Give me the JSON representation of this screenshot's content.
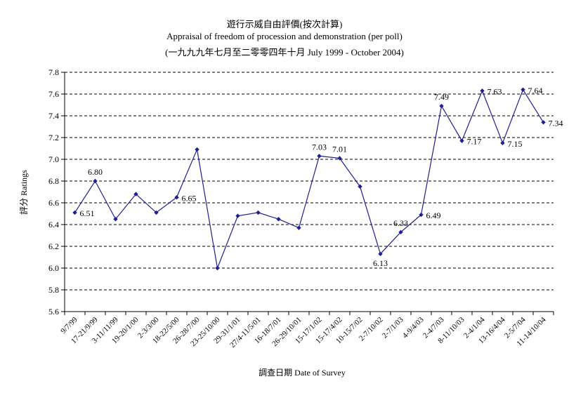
{
  "chart_data": {
    "type": "line",
    "title": "遊行示威自由評價(按次計算)",
    "subtitle": "Appraisal of freedom of procession and demonstration (per poll)",
    "subtitle2": "(一九九九年七月至二零零四年十月 July 1999 - October 2004)",
    "xlabel": "調查日期 Date of Survey",
    "ylabel": "評分 Ratings",
    "ylim": [
      5.6,
      7.8
    ],
    "ytick_step": 0.2,
    "y_ticks": [
      "5.6",
      "5.8",
      "6.0",
      "6.2",
      "6.4",
      "6.6",
      "6.8",
      "7.0",
      "7.2",
      "7.4",
      "7.6",
      "7.8"
    ],
    "grid": "horizontal-dashed",
    "line_color": "#1f1f8f",
    "x": [
      "9/7/99",
      "17-21/9/99",
      "3-11/11/99",
      "19-20/1/00",
      "2-3/3/00",
      "18-22/5/00",
      "26-28/7/00",
      "23-25/10/00",
      "29-31/1/01",
      "27/4-11/5/01",
      "16-18/7/01",
      "26-29/10/01",
      "15-17/1/02",
      "15-17/4/02",
      "10-15/7/02",
      "2-7/10/02",
      "2-7/1/03",
      "4-9/4/03",
      "2-4/7/03",
      "8-11/10/03",
      "2-4/1/04",
      "13-16/4/04",
      "2-5/7/04",
      "11-14/10/04"
    ],
    "values": [
      6.51,
      6.8,
      6.45,
      6.68,
      6.51,
      6.65,
      7.09,
      6.0,
      6.48,
      6.51,
      6.45,
      6.37,
      7.03,
      7.01,
      6.75,
      6.13,
      6.33,
      6.49,
      7.49,
      7.17,
      7.63,
      7.15,
      7.64,
      7.34
    ],
    "data_labels": [
      {
        "index": 0,
        "text": "6.51"
      },
      {
        "index": 1,
        "text": "6.80"
      },
      {
        "index": 5,
        "text": "6.65"
      },
      {
        "index": 12,
        "text": "7.03"
      },
      {
        "index": 13,
        "text": "7.01"
      },
      {
        "index": 15,
        "text": "6.13"
      },
      {
        "index": 16,
        "text": "6.33"
      },
      {
        "index": 17,
        "text": "6.49"
      },
      {
        "index": 18,
        "text": "7.49"
      },
      {
        "index": 19,
        "text": "7.17"
      },
      {
        "index": 20,
        "text": "7.63"
      },
      {
        "index": 21,
        "text": "7.15"
      },
      {
        "index": 22,
        "text": "7.64"
      },
      {
        "index": 23,
        "text": "7.34"
      }
    ]
  }
}
